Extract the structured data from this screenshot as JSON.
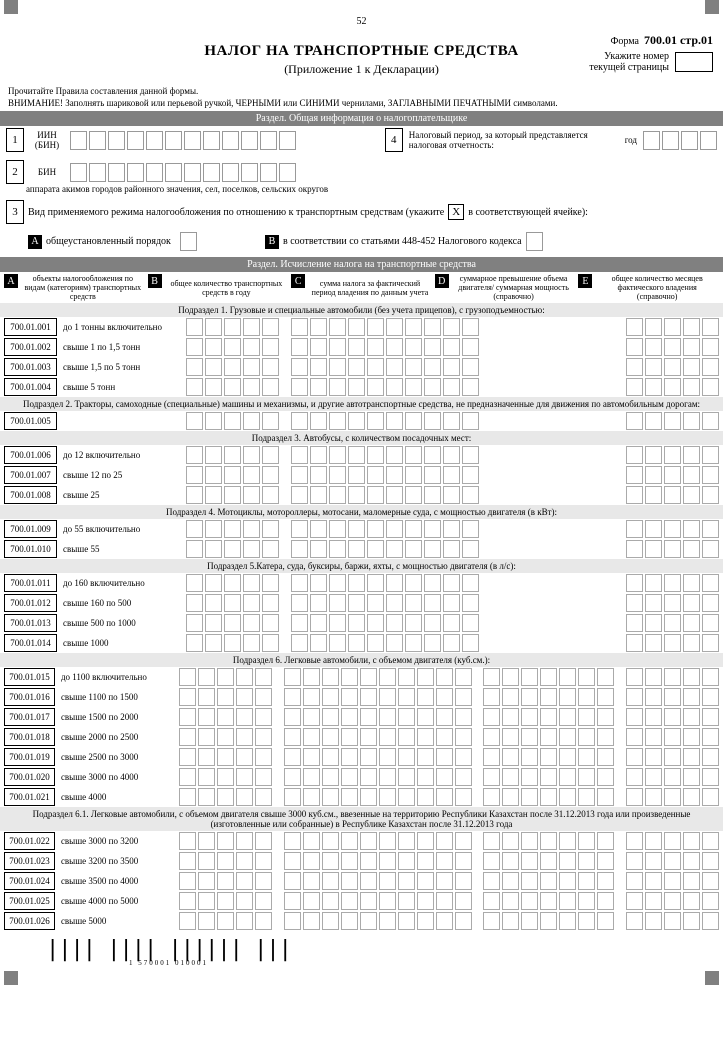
{
  "page_number": "52",
  "form_prefix": "Форма",
  "form_no": "700.01 стр.01",
  "title": "НАЛОГ НА ТРАНСПОРТНЫЕ СРЕДСТВА",
  "subtitle": "(Приложение 1 к Декларации)",
  "pagebox": {
    "l1": "Укажите номер",
    "l2": "текущей страницы"
  },
  "instr1": "Прочитайте Правила составления данной формы.",
  "instr2": "ВНИМАНИЕ! Заполнять шариковой или перьевой ручкой, ЧЕРНЫМИ или СИНИМИ чернилами, ЗАГЛАВНЫМИ ПЕЧАТНЫМИ символами.",
  "sec1": "Раздел. Общая информация о налогоплательщике",
  "f1": {
    "n": "1",
    "l1": "ИИН",
    "l2": "(БИН)"
  },
  "f2": {
    "n": "2",
    "l": "БИН",
    "sub": "аппарата акимов городов районного значения, сел, поселков, сельских округов"
  },
  "f3": {
    "n": "3",
    "l": "Вид применяемого режима налогообложения по отношению к транспортным средствам (укажите",
    "x": "X",
    "l2": "в соответствующей ячейке):"
  },
  "f3a": {
    "A": "A",
    "la": "общеустановленный  порядок",
    "B": "B",
    "lb": "в соответствии со  статьями 448-452 Налогового кодекса"
  },
  "f4": {
    "n": "4",
    "l1": "Налоговый период, за который представляется",
    "l2": "налоговая отчетность:",
    "year": "год"
  },
  "sec2": "Раздел. Исчисление налога на транспортные средства",
  "cols": {
    "A": "A",
    "a": "объекты налогообложения по видам (категориям) транспортных средств",
    "B": "B",
    "b": "общее количество транспортных средств в году",
    "C": "C",
    "c": "сумма налога за фактический период владения по данным учета",
    "D": "D",
    "d": "суммарное превышение объема двигателя/ суммарная мощность (справочно)",
    "E": "E",
    "e": "общее количество месяцев фактического владения (справочно)"
  },
  "subs": {
    "s1": "Подраздел 1. Грузовые  и специальные автомобили (без учета прицепов), с грузоподъемностью:",
    "s2": "Подраздел 2. Тракторы, самоходные (специальные) машины и механизмы, и другие автотранспортные средства, не предназначенные для движения по автомобильным дорогам:",
    "s3": "Подраздел 3. Автобусы, с количеством посадочных мест:",
    "s4": "Подраздел 4. Мотоциклы, мотороллеры, мотосани, маломерные суда, с мощностью двигателя (в кВт):",
    "s5": "Подраздел 5.Катера, суда, буксиры, баржи, яхты, с мощностью двигателя (в л/с):",
    "s6": "Подраздел 6. Легковые автомобили, с объемом двигателя (куб.см.):",
    "s61": "Подраздел 6.1. Легковые автомобили, с объемом двигателя свыше 3000 куб.см., ввезенные на территорию Республики Казахстан после 31.12.2013 года или произведенные (изготовленные или собранные) в Республике Казахстан после 31.12.2013 года"
  },
  "rows": [
    {
      "c": "700.01.001",
      "d": "до 1 тонны включительно",
      "D": false
    },
    {
      "c": "700.01.002",
      "d": "свыше 1 по 1,5 тонн",
      "D": false
    },
    {
      "c": "700.01.003",
      "d": "свыше 1,5 по 5 тонн",
      "D": false
    },
    {
      "c": "700.01.004",
      "d": "свыше 5 тонн",
      "D": false
    }
  ],
  "rows2": [
    {
      "c": "700.01.005",
      "d": "",
      "D": false
    }
  ],
  "rows3": [
    {
      "c": "700.01.006",
      "d": "до 12 включительно",
      "D": false
    },
    {
      "c": "700.01.007",
      "d": "свыше 12 по 25",
      "D": false
    },
    {
      "c": "700.01.008",
      "d": "свыше 25",
      "D": false
    }
  ],
  "rows4": [
    {
      "c": "700.01.009",
      "d": "до 55 включительно",
      "D": false
    },
    {
      "c": "700.01.010",
      "d": "свыше 55",
      "D": false
    }
  ],
  "rows5": [
    {
      "c": "700.01.011",
      "d": "до 160 включительно",
      "D": false
    },
    {
      "c": "700.01.012",
      "d": "свыше 160 по 500",
      "D": false
    },
    {
      "c": "700.01.013",
      "d": "свыше 500 по 1000",
      "D": false
    },
    {
      "c": "700.01.014",
      "d": "свыше 1000",
      "D": false
    }
  ],
  "rows6": [
    {
      "c": "700.01.015",
      "d": "до 1100 включительно",
      "D": true
    },
    {
      "c": "700.01.016",
      "d": "свыше 1100 по 1500",
      "D": true
    },
    {
      "c": "700.01.017",
      "d": "свыше 1500 по 2000",
      "D": true
    },
    {
      "c": "700.01.018",
      "d": "свыше 2000 по 2500",
      "D": true
    },
    {
      "c": "700.01.019",
      "d": "свыше 2500 по 3000",
      "D": true
    },
    {
      "c": "700.01.020",
      "d": "свыше 3000 по 4000",
      "D": true
    },
    {
      "c": "700.01.021",
      "d": "свыше 4000",
      "D": true
    }
  ],
  "rows61": [
    {
      "c": "700.01.022",
      "d": "свыше 3000 по 3200",
      "D": true
    },
    {
      "c": "700.01.023",
      "d": "свыше 3200 по 3500",
      "D": true
    },
    {
      "c": "700.01.024",
      "d": "свыше 3500 по 4000",
      "D": true
    },
    {
      "c": "700.01.025",
      "d": "свыше 4000 по 5000",
      "D": true
    },
    {
      "c": "700.01.026",
      "d": "свыше 5000",
      "D": true
    }
  ],
  "barcode": "1 570001 010001",
  "cellcounts": {
    "iin": 12,
    "bin": 12,
    "year": 4,
    "B": 5,
    "C": 10,
    "D": 7,
    "E": 5
  }
}
